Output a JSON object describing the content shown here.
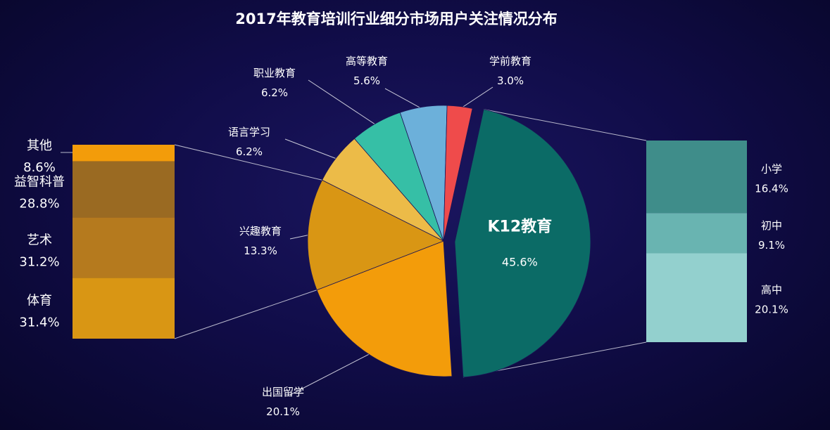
{
  "chart_data": {
    "type": "pie",
    "title": "2017年教育培训行业细分市场用户关注情况分布",
    "slices": [
      {
        "name": "K12教育",
        "value": 45.6,
        "label": "45.6%",
        "color": "#0b6b66",
        "exploded": true
      },
      {
        "name": "出国留学",
        "value": 20.1,
        "label": "20.1%",
        "color": "#f39c0a"
      },
      {
        "name": "兴趣教育",
        "value": 13.3,
        "label": "13.3%",
        "color": "#d99614"
      },
      {
        "name": "语言学习",
        "value": 6.2,
        "label": "6.2%",
        "color": "#ecbb48"
      },
      {
        "name": "职业教育",
        "value": 6.2,
        "label": "6.2%",
        "color": "#36bfa6"
      },
      {
        "name": "高等教育",
        "value": 5.6,
        "label": "5.6%",
        "color": "#6cb0da"
      },
      {
        "name": "学前教育",
        "value": 3.0,
        "label": "3.0%",
        "color": "#ef4b4b"
      }
    ],
    "breakdowns": [
      {
        "parent": "兴趣教育",
        "items": [
          {
            "name": "其他",
            "value": 8.6,
            "label": "8.6%",
            "color": "#f39c0a"
          },
          {
            "name": "益智科普",
            "value": 28.8,
            "label": "28.8%",
            "color": "#9a6a22"
          },
          {
            "name": "艺术",
            "value": 31.2,
            "label": "31.2%",
            "color": "#b57a1e"
          },
          {
            "name": "体育",
            "value": 31.4,
            "label": "31.4%",
            "color": "#d99614"
          }
        ]
      },
      {
        "parent": "K12教育",
        "items": [
          {
            "name": "小学",
            "value": 16.4,
            "label": "16.4%",
            "color": "#3f8d8a"
          },
          {
            "name": "初中",
            "value": 9.1,
            "label": "9.1%",
            "color": "#69b4b1"
          },
          {
            "name": "高中",
            "value": 20.1,
            "label": "20.1%",
            "color": "#93d0ce"
          }
        ]
      }
    ]
  }
}
